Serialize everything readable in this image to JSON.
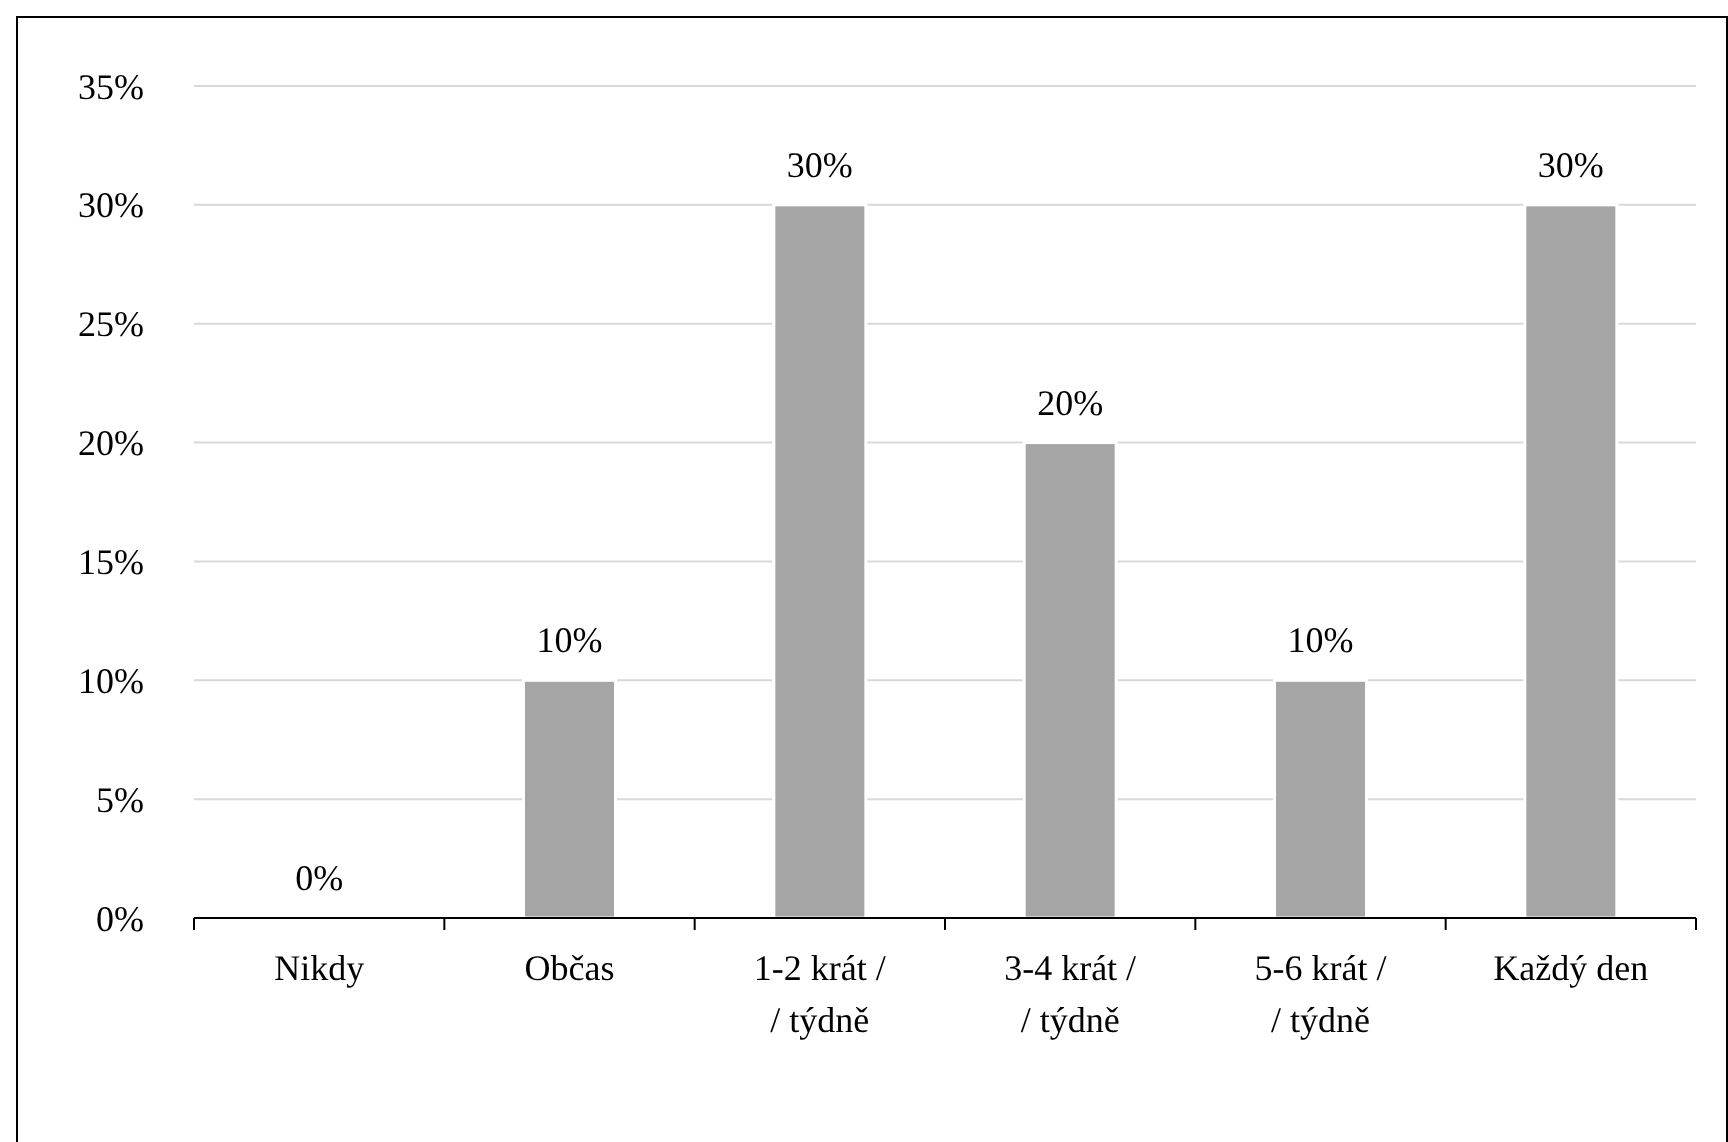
{
  "chart_data": {
    "type": "bar",
    "categories": [
      "Nikdy",
      "Občas",
      "1-2 krát / / týdně",
      "3-4 krát / / týdně",
      "5-6 krát / / týdně",
      "Každý den"
    ],
    "values": [
      0,
      10,
      30,
      20,
      10,
      30
    ],
    "value_labels": [
      "0%",
      "10%",
      "30%",
      "20%",
      "10%",
      "30%"
    ],
    "color": "#a5a5a5",
    "ylim": [
      0,
      35
    ],
    "yticks": [
      {
        "value": 0,
        "label": "0%"
      },
      {
        "value": 5,
        "label": "5%"
      },
      {
        "value": 10,
        "label": "10%"
      },
      {
        "value": 15,
        "label": "15%"
      },
      {
        "value": 20,
        "label": "20%"
      },
      {
        "value": 25,
        "label": "25%"
      },
      {
        "value": 30,
        "label": "30%"
      },
      {
        "value": 35,
        "label": "35%"
      }
    ],
    "grid": "y"
  }
}
